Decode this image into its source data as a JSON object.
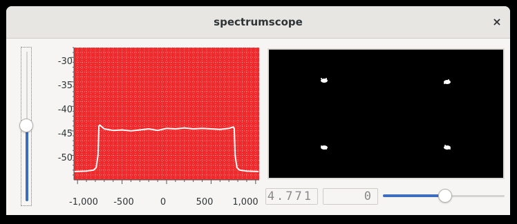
{
  "window": {
    "title": "spectrumscope",
    "close_symbol": "×"
  },
  "gain_slider": {
    "level": 0.47
  },
  "spectrum_plot": {
    "background": "#ee2a2d",
    "trace_color": "#ffffff",
    "y_ticks": [
      "-30",
      "-35",
      "-40",
      "-45",
      "-50"
    ],
    "x_ticks": [
      "-1,000",
      "-500",
      "0",
      "500",
      "1,000"
    ]
  },
  "constellation": {
    "background": "#000000",
    "point_color": "#ffffff"
  },
  "readouts": {
    "left": "4.771",
    "right": "0"
  },
  "horizontal_slider": {
    "level": 0.5
  },
  "chart_data": {
    "type": "line",
    "x_range": [
      -1000,
      1000
    ],
    "ylim": [
      -55,
      -28
    ],
    "grid": true,
    "series": [
      {
        "x": [
          -1030,
          -900,
          -820,
          -790,
          -770,
          -760,
          -750,
          -700,
          -600,
          -500,
          -400,
          -300,
          -200,
          -100,
          0,
          100,
          200,
          300,
          400,
          500,
          600,
          700,
          750,
          760,
          770,
          790,
          820,
          900,
          1030
        ],
        "y": [
          -53.3,
          -53.2,
          -53.0,
          -52.5,
          -50.0,
          -44.0,
          -43.8,
          -44.6,
          -44.9,
          -44.8,
          -45.0,
          -44.8,
          -44.6,
          -44.9,
          -44.5,
          -44.6,
          -44.4,
          -44.6,
          -44.5,
          -44.6,
          -44.7,
          -44.5,
          -44.2,
          -44.5,
          -50.0,
          -52.5,
          -53.0,
          -53.2,
          -53.3
        ]
      }
    ]
  }
}
